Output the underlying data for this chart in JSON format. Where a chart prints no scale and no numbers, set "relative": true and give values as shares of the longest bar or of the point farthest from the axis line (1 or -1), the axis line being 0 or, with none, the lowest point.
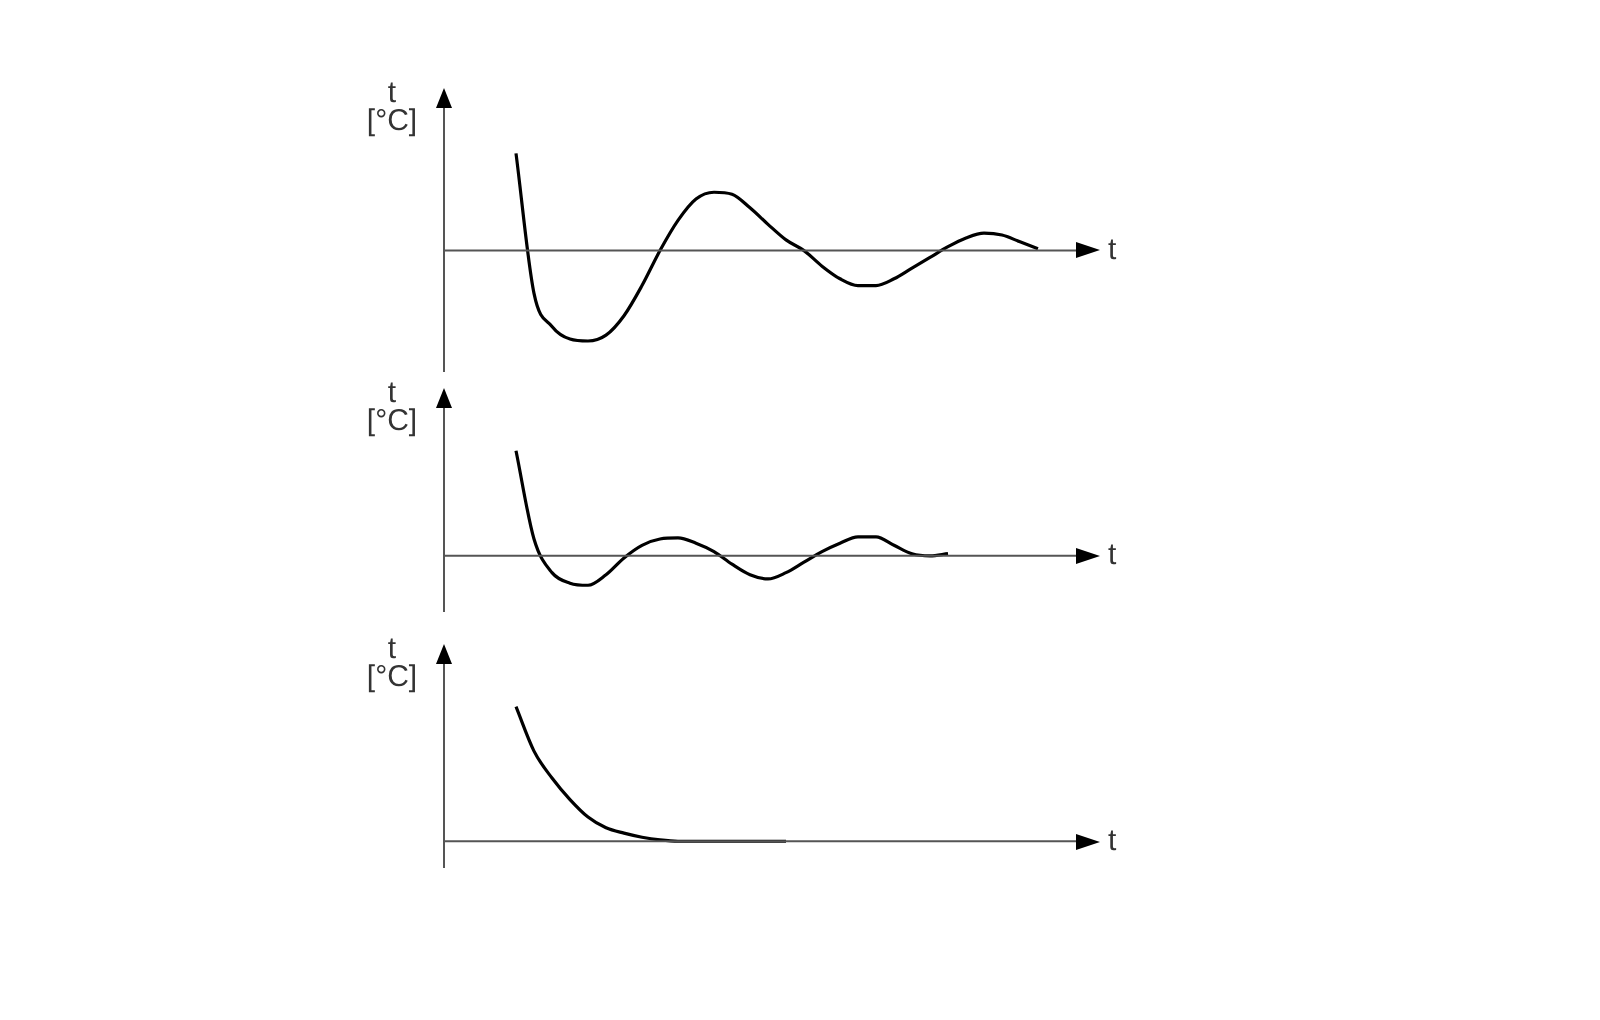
{
  "chart_data": [
    {
      "type": "line",
      "xlabel": "t",
      "ylabel": "t\n[°C]",
      "relative": true,
      "color": "#000000",
      "categories": [
        null,
        null,
        null,
        null,
        null,
        null,
        null,
        null,
        null,
        null,
        null,
        null,
        null,
        null,
        null,
        null,
        null,
        null,
        null,
        null,
        null,
        null,
        null,
        null,
        null,
        null,
        null,
        null,
        null,
        null,
        null,
        null,
        null,
        null,
        null,
        null,
        null
      ],
      "values": [
        null,
        null,
        null,
        null,
        1.0,
        -0.44,
        -0.78,
        -0.91,
        -0.93,
        -0.87,
        -0.67,
        -0.36,
        0,
        0.31,
        0.53,
        0.6,
        0.58,
        0.44,
        0.27,
        0.11,
        0,
        -0.16,
        -0.29,
        -0.36,
        -0.36,
        -0.29,
        -0.18,
        -0.07,
        0.04,
        0.13,
        0.18,
        0.16,
        0.09,
        0.02,
        null,
        null,
        null
      ]
    },
    {
      "type": "line",
      "xlabel": "t",
      "ylabel": "t\n[°C]",
      "relative": true,
      "color": "#000000",
      "categories": [
        null,
        null,
        null,
        null,
        null,
        null,
        null,
        null,
        null,
        null,
        null,
        null,
        null,
        null,
        null,
        null,
        null,
        null,
        null,
        null,
        null,
        null,
        null,
        null,
        null,
        null,
        null,
        null,
        null,
        null,
        null,
        null,
        null,
        null,
        null,
        null,
        null
      ],
      "values": [
        null,
        null,
        null,
        null,
        1.0,
        0.16,
        -0.16,
        -0.26,
        -0.28,
        -0.18,
        -0.02,
        0.1,
        0.16,
        0.17,
        0.12,
        0.04,
        -0.08,
        -0.18,
        -0.22,
        -0.16,
        -0.06,
        0.04,
        0.12,
        0.18,
        0.18,
        0.1,
        0.02,
        0,
        0.02,
        null,
        null,
        null,
        null,
        null,
        null,
        null,
        null
      ]
    },
    {
      "type": "line",
      "xlabel": "t",
      "ylabel": "t\n[°C]",
      "relative": true,
      "color": "#000000",
      "categories": [
        null,
        null,
        null,
        null,
        null,
        null,
        null,
        null,
        null,
        null,
        null,
        null,
        null,
        null,
        null,
        null,
        null,
        null,
        null,
        null,
        null,
        null,
        null,
        null,
        null,
        null,
        null,
        null,
        null,
        null,
        null,
        null,
        null,
        null,
        null,
        null,
        null
      ],
      "values": [
        null,
        null,
        null,
        null,
        1.0,
        0.67,
        0.47,
        0.31,
        0.18,
        0.1,
        0.06,
        0.03,
        0.01,
        0,
        0,
        0,
        0,
        0,
        0,
        0,
        null,
        null,
        null,
        null,
        null,
        null,
        null,
        null,
        null,
        null,
        null,
        null,
        null,
        null,
        null,
        null,
        null
      ]
    }
  ]
}
